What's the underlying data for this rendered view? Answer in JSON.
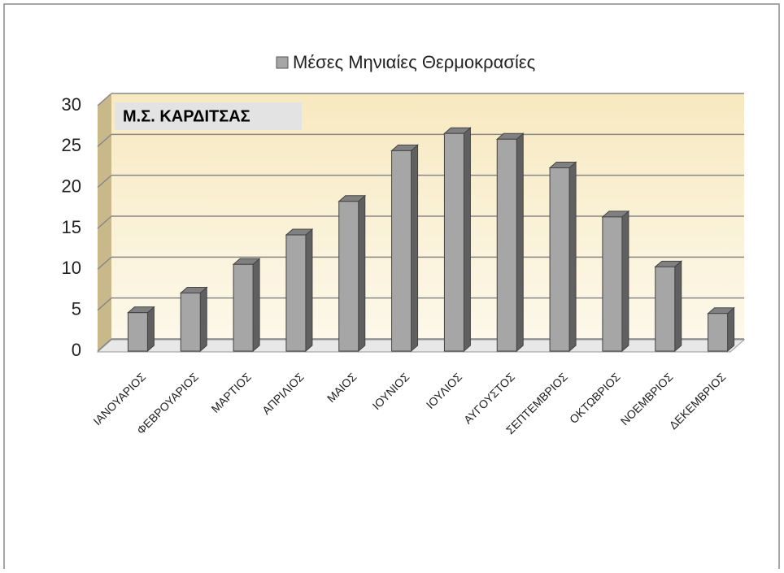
{
  "chart_data": {
    "type": "bar",
    "annotation": "Μ.Σ. ΚΑΡΔΙΤΣΑΣ",
    "categories": [
      "ΙΑΝΟΥΑΡΙΟΣ",
      "ΦΕΒΡΟΥΑΡΙΟΣ",
      "ΜΑΡΤΙΟΣ",
      "ΑΠΡΙΛΙΟΣ",
      "ΜΑΙΟΣ",
      "ΙΟΥΝΙΟΣ",
      "ΙΟΥΛΙΟΣ",
      "ΑΥΓΟΥΣΤΟΣ",
      "ΣΕΠΤΕΜΒΡΙΟΣ",
      "ΟΚΤΩΒΡΙΟΣ",
      "ΝΟΕΜΒΡΙΟΣ",
      "ΔΕΚΕΜΒΡΙΟΣ"
    ],
    "series": [
      {
        "name": "Μέσες Μηνιαίες Θερμοκρασίες",
        "color": "#a6a6a6",
        "values": [
          4.7,
          7.1,
          10.6,
          14.2,
          18.3,
          24.5,
          26.6,
          25.9,
          22.4,
          16.4,
          10.3,
          4.6
        ]
      }
    ],
    "ylim": [
      0,
      30
    ],
    "yticks": [
      0,
      5,
      10,
      15,
      20,
      25,
      30
    ],
    "grid": true,
    "legend": "top"
  }
}
